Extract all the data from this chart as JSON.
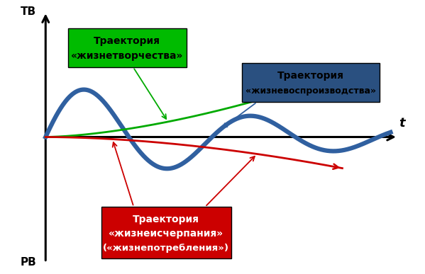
{
  "background_color": "#ffffff",
  "axis_color": "#000000",
  "tv_label": "ТВ",
  "pv_label": "РВ",
  "t_label": "t",
  "green_label_line1": "Траектория",
  "green_label_line2": "«жизнетворчества»",
  "blue_label_line1": "Траектория",
  "blue_label_line2": "«жизневоспроизводства»",
  "red_label_line1": "Траектория",
  "red_label_line2": "«жизнеисчерпания»",
  "red_label_line3": "(«жизнепотребления»)",
  "green_color": "#00aa00",
  "blue_color": "#3060a0",
  "red_color": "#cc0000",
  "green_box_color": "#00bb00",
  "blue_box_color": "#2a5080",
  "red_box_color": "#cc0000",
  "xlim": [
    -0.5,
    10.5
  ],
  "ylim": [
    -3.2,
    3.2
  ],
  "figsize": [
    5.99,
    3.87
  ],
  "dpi": 100
}
